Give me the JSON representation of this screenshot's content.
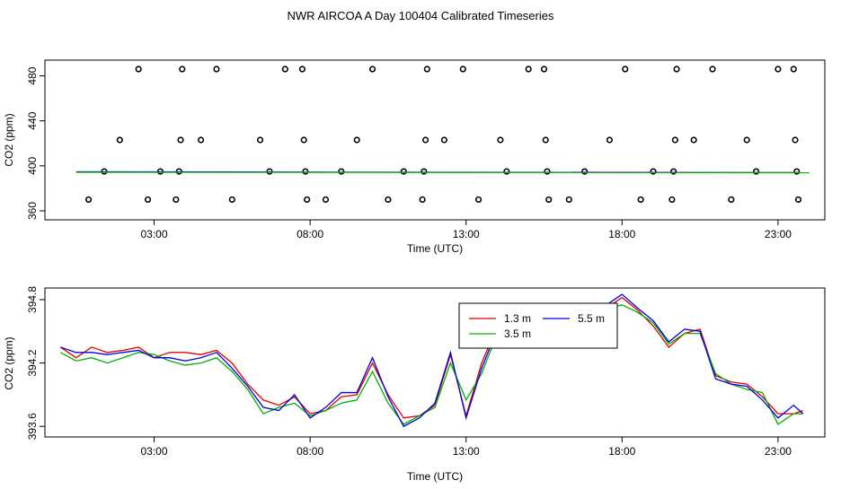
{
  "title": "NWR AIRCOA A  Day 100404  Calibrated Timeseries",
  "colors": {
    "series_1_3m": "#e00000",
    "series_3_5m": "#00b000",
    "series_5_m": "#0000dd",
    "points": "#000000",
    "frame": "#000000"
  },
  "chart_data": [
    {
      "type": "scatter",
      "xlabel": "Time (UTC)",
      "ylabel": "CO2 (ppm)",
      "x_ticks": [
        {
          "v": 3,
          "label": "03:00"
        },
        {
          "v": 8,
          "label": "08:00"
        },
        {
          "v": 13,
          "label": "13:00"
        },
        {
          "v": 18,
          "label": "18:00"
        },
        {
          "v": 23,
          "label": "23:00"
        }
      ],
      "y_ticks": [
        {
          "v": 360,
          "label": "360"
        },
        {
          "v": 400,
          "label": "400"
        },
        {
          "v": 440,
          "label": "440"
        },
        {
          "v": 480,
          "label": "480"
        }
      ],
      "xlim": [
        -0.5,
        24.5
      ],
      "ylim": [
        352,
        494
      ],
      "points": [
        [
          0.9,
          370
        ],
        [
          1.4,
          395
        ],
        [
          1.9,
          423
        ],
        [
          2.5,
          486
        ],
        [
          2.8,
          370
        ],
        [
          3.2,
          395
        ],
        [
          3.7,
          370
        ],
        [
          3.8,
          395
        ],
        [
          3.85,
          423
        ],
        [
          3.9,
          486
        ],
        [
          4.5,
          423
        ],
        [
          5.0,
          486
        ],
        [
          5.5,
          370
        ],
        [
          6.4,
          423
        ],
        [
          6.7,
          395
        ],
        [
          7.2,
          486
        ],
        [
          7.75,
          486
        ],
        [
          7.8,
          423
        ],
        [
          7.85,
          395
        ],
        [
          7.9,
          370
        ],
        [
          8.5,
          370
        ],
        [
          9.0,
          395
        ],
        [
          9.5,
          423
        ],
        [
          10.0,
          486
        ],
        [
          10.5,
          370
        ],
        [
          11.0,
          395
        ],
        [
          11.6,
          370
        ],
        [
          11.65,
          395
        ],
        [
          11.7,
          423
        ],
        [
          11.75,
          486
        ],
        [
          12.3,
          423
        ],
        [
          12.9,
          486
        ],
        [
          13.4,
          370
        ],
        [
          14.1,
          423
        ],
        [
          14.3,
          395
        ],
        [
          15.0,
          486
        ],
        [
          15.5,
          486
        ],
        [
          15.55,
          423
        ],
        [
          15.6,
          395
        ],
        [
          15.65,
          370
        ],
        [
          16.3,
          370
        ],
        [
          16.8,
          395
        ],
        [
          17.6,
          423
        ],
        [
          18.1,
          486
        ],
        [
          18.6,
          370
        ],
        [
          19.0,
          395
        ],
        [
          19.6,
          370
        ],
        [
          19.65,
          395
        ],
        [
          19.7,
          423
        ],
        [
          19.75,
          486
        ],
        [
          20.3,
          423
        ],
        [
          20.9,
          486
        ],
        [
          21.5,
          370
        ],
        [
          22.0,
          423
        ],
        [
          22.3,
          395
        ],
        [
          23.0,
          486
        ],
        [
          23.5,
          486
        ],
        [
          23.55,
          423
        ],
        [
          23.6,
          395
        ],
        [
          23.65,
          370
        ]
      ],
      "lines": [
        {
          "color_key": "series_5_m",
          "x": [
            0.5,
            24.0
          ],
          "y": [
            394.7,
            394.0
          ]
        },
        {
          "color_key": "series_3_5m",
          "x": [
            0.5,
            24.0
          ],
          "y": [
            394.3,
            393.9
          ]
        }
      ]
    },
    {
      "type": "line",
      "xlabel": "Time (UTC)",
      "ylabel": "CO2 (ppm)",
      "x_ticks": [
        {
          "v": 3,
          "label": "03:00"
        },
        {
          "v": 8,
          "label": "08:00"
        },
        {
          "v": 13,
          "label": "13:00"
        },
        {
          "v": 18,
          "label": "18:00"
        },
        {
          "v": 23,
          "label": "23:00"
        }
      ],
      "y_ticks": [
        {
          "v": 393.6,
          "label": "393.6"
        },
        {
          "v": 394.2,
          "label": "394.2"
        },
        {
          "v": 394.8,
          "label": "394.8"
        }
      ],
      "xlim": [
        -0.5,
        24.5
      ],
      "ylim": [
        393.5,
        394.91
      ],
      "legend": [
        "1.3 m",
        "3.5 m",
        "5.5 m"
      ],
      "legend_position": "top-right",
      "series": [
        {
          "name": "1.3 m",
          "color_key": "series_1_3m",
          "x": [
            0,
            0.5,
            1,
            1.5,
            2,
            2.5,
            3,
            3.5,
            4,
            4.5,
            5,
            5.5,
            6,
            6.5,
            7,
            7.5,
            8,
            8.5,
            9,
            9.5,
            10,
            10.5,
            11,
            11.5,
            12,
            12.5,
            13,
            13.5,
            14,
            14.5,
            15,
            15.5,
            16,
            16.5,
            17,
            17.5,
            18,
            18.5,
            19,
            19.5,
            20,
            20.5,
            21,
            21.5,
            22,
            22.5,
            23,
            23.5,
            23.8
          ],
          "y": [
            394.35,
            394.25,
            394.35,
            394.3,
            394.32,
            394.35,
            394.25,
            394.3,
            394.3,
            394.28,
            394.32,
            394.2,
            394.0,
            393.85,
            393.8,
            393.88,
            393.72,
            393.75,
            393.88,
            393.9,
            394.2,
            393.9,
            393.68,
            393.7,
            393.8,
            394.28,
            393.7,
            394.2,
            394.55,
            394.68,
            394.62,
            394.7,
            394.72,
            394.72,
            394.68,
            394.72,
            394.82,
            394.7,
            394.55,
            394.35,
            394.48,
            394.52,
            394.08,
            394.02,
            394.0,
            393.88,
            393.72,
            393.72,
            393.75
          ]
        },
        {
          "name": "3.5 m",
          "color_key": "series_3_5m",
          "x": [
            0,
            0.5,
            1,
            1.5,
            2,
            2.5,
            3,
            3.5,
            4,
            4.5,
            5,
            5.5,
            6,
            6.5,
            7,
            7.5,
            8,
            8.5,
            9,
            9.5,
            10,
            10.5,
            11,
            11.5,
            12,
            12.5,
            13,
            13.5,
            14,
            14.5,
            15,
            15.5,
            16,
            16.5,
            17,
            17.5,
            18,
            18.5,
            19,
            19.5,
            20,
            20.5,
            21,
            21.5,
            22,
            22.5,
            23,
            23.5,
            23.8
          ],
          "y": [
            394.3,
            394.22,
            394.25,
            394.2,
            394.25,
            394.3,
            394.28,
            394.22,
            394.18,
            394.2,
            394.25,
            394.12,
            393.95,
            393.72,
            393.78,
            393.82,
            393.7,
            393.75,
            393.82,
            393.85,
            394.12,
            393.82,
            393.62,
            393.7,
            393.78,
            394.2,
            393.85,
            394.1,
            394.48,
            394.62,
            394.65,
            394.68,
            394.7,
            394.68,
            394.7,
            394.72,
            394.75,
            394.68,
            394.58,
            394.38,
            394.48,
            394.48,
            394.1,
            394.0,
            393.95,
            393.92,
            393.62,
            393.72,
            393.72
          ]
        },
        {
          "name": "5.5 m",
          "color_key": "series_5_m",
          "x": [
            0,
            0.5,
            1,
            1.5,
            2,
            2.5,
            3,
            3.5,
            4,
            4.5,
            5,
            5.5,
            6,
            6.5,
            7,
            7.5,
            8,
            8.5,
            9,
            9.5,
            10,
            10.5,
            11,
            11.5,
            12,
            12.5,
            13,
            13.5,
            14,
            14.5,
            15,
            15.5,
            16,
            16.5,
            17,
            17.5,
            18,
            18.5,
            19,
            19.5,
            20,
            20.5,
            21,
            21.5,
            22,
            22.5,
            23,
            23.5,
            23.8
          ],
          "y": [
            394.35,
            394.3,
            394.3,
            394.28,
            394.3,
            394.32,
            394.25,
            394.25,
            394.22,
            394.25,
            394.3,
            394.15,
            393.98,
            393.78,
            393.75,
            393.9,
            393.68,
            393.78,
            393.92,
            393.92,
            394.25,
            393.88,
            393.6,
            393.68,
            393.82,
            394.3,
            393.68,
            394.15,
            394.52,
            394.65,
            394.62,
            394.72,
            394.7,
            394.72,
            394.7,
            394.75,
            394.85,
            394.72,
            394.6,
            394.4,
            394.52,
            394.5,
            394.05,
            394.0,
            393.98,
            393.85,
            393.68,
            393.8,
            393.72
          ]
        }
      ]
    }
  ]
}
